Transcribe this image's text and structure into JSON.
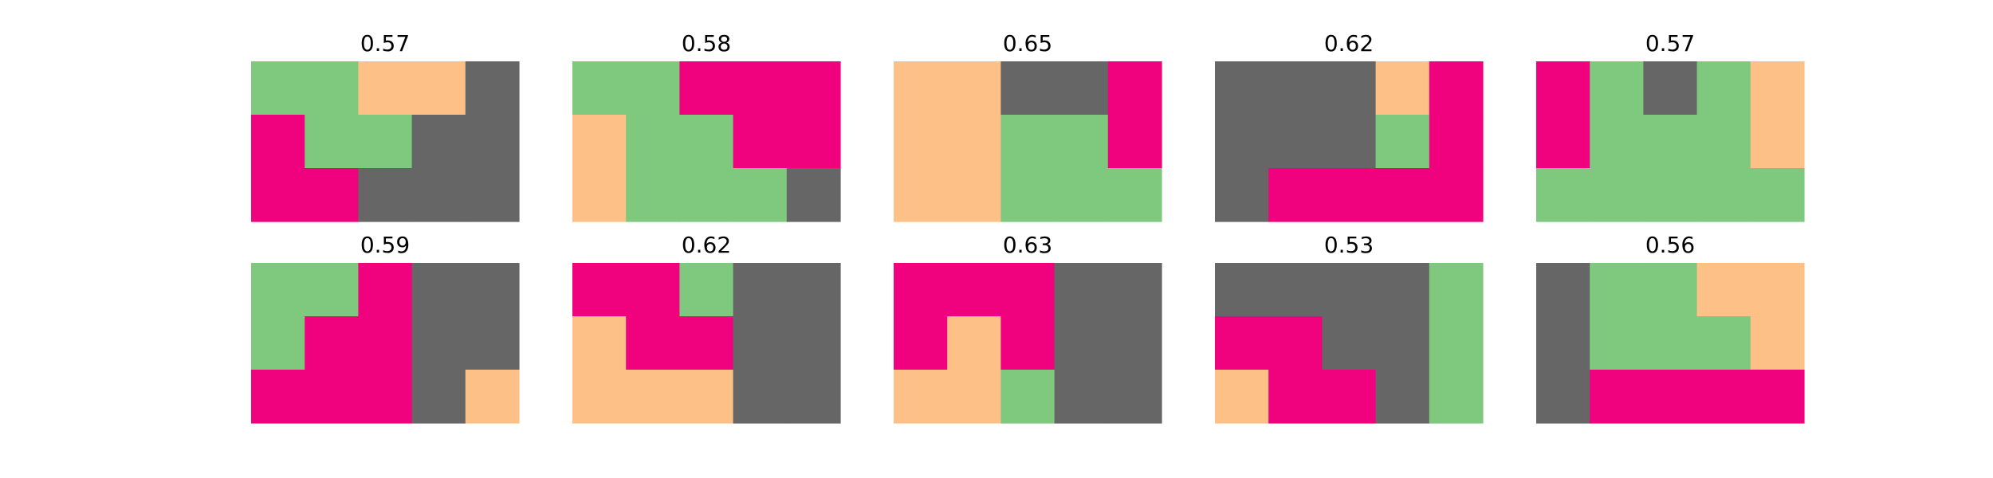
{
  "palette": {
    "G": "#7fc97f",
    "O": "#fdc086",
    "P": "#f0027f",
    "D": "#666666"
  },
  "chart_data": {
    "type": "heatmap",
    "grid": "off",
    "axes": "hidden",
    "layout": "2 rows x 5 columns",
    "panels": [
      {
        "title": "0.57",
        "cells": [
          [
            "G",
            "G",
            "O",
            "O",
            "D"
          ],
          [
            "P",
            "G",
            "G",
            "D",
            "D"
          ],
          [
            "P",
            "P",
            "D",
            "D",
            "D"
          ]
        ]
      },
      {
        "title": "0.58",
        "cells": [
          [
            "G",
            "G",
            "P",
            "P",
            "P"
          ],
          [
            "O",
            "G",
            "G",
            "P",
            "P"
          ],
          [
            "O",
            "G",
            "G",
            "G",
            "D"
          ]
        ]
      },
      {
        "title": "0.65",
        "cells": [
          [
            "O",
            "O",
            "D",
            "D",
            "P"
          ],
          [
            "O",
            "O",
            "G",
            "G",
            "P"
          ],
          [
            "O",
            "O",
            "G",
            "G",
            "G"
          ]
        ]
      },
      {
        "title": "0.62",
        "cells": [
          [
            "D",
            "D",
            "D",
            "O",
            "P"
          ],
          [
            "D",
            "D",
            "D",
            "G",
            "P"
          ],
          [
            "D",
            "P",
            "P",
            "P",
            "P"
          ]
        ]
      },
      {
        "title": "0.57",
        "cells": [
          [
            "P",
            "G",
            "D",
            "G",
            "O"
          ],
          [
            "P",
            "G",
            "G",
            "G",
            "O"
          ],
          [
            "G",
            "G",
            "G",
            "G",
            "G"
          ]
        ]
      },
      {
        "title": "0.59",
        "cells": [
          [
            "G",
            "G",
            "P",
            "D",
            "D"
          ],
          [
            "G",
            "P",
            "P",
            "D",
            "D"
          ],
          [
            "P",
            "P",
            "P",
            "D",
            "O"
          ]
        ]
      },
      {
        "title": "0.62",
        "cells": [
          [
            "P",
            "P",
            "G",
            "D",
            "D"
          ],
          [
            "O",
            "P",
            "P",
            "D",
            "D"
          ],
          [
            "O",
            "O",
            "O",
            "D",
            "D"
          ]
        ]
      },
      {
        "title": "0.63",
        "cells": [
          [
            "P",
            "P",
            "P",
            "D",
            "D"
          ],
          [
            "P",
            "O",
            "P",
            "D",
            "D"
          ],
          [
            "O",
            "O",
            "G",
            "D",
            "D"
          ]
        ]
      },
      {
        "title": "0.53",
        "cells": [
          [
            "D",
            "D",
            "D",
            "D",
            "G"
          ],
          [
            "P",
            "P",
            "D",
            "D",
            "G"
          ],
          [
            "O",
            "P",
            "P",
            "D",
            "G"
          ]
        ]
      },
      {
        "title": "0.56",
        "cells": [
          [
            "D",
            "G",
            "G",
            "O",
            "O"
          ],
          [
            "D",
            "G",
            "G",
            "G",
            "O"
          ],
          [
            "D",
            "P",
            "P",
            "P",
            "P"
          ]
        ]
      }
    ]
  }
}
